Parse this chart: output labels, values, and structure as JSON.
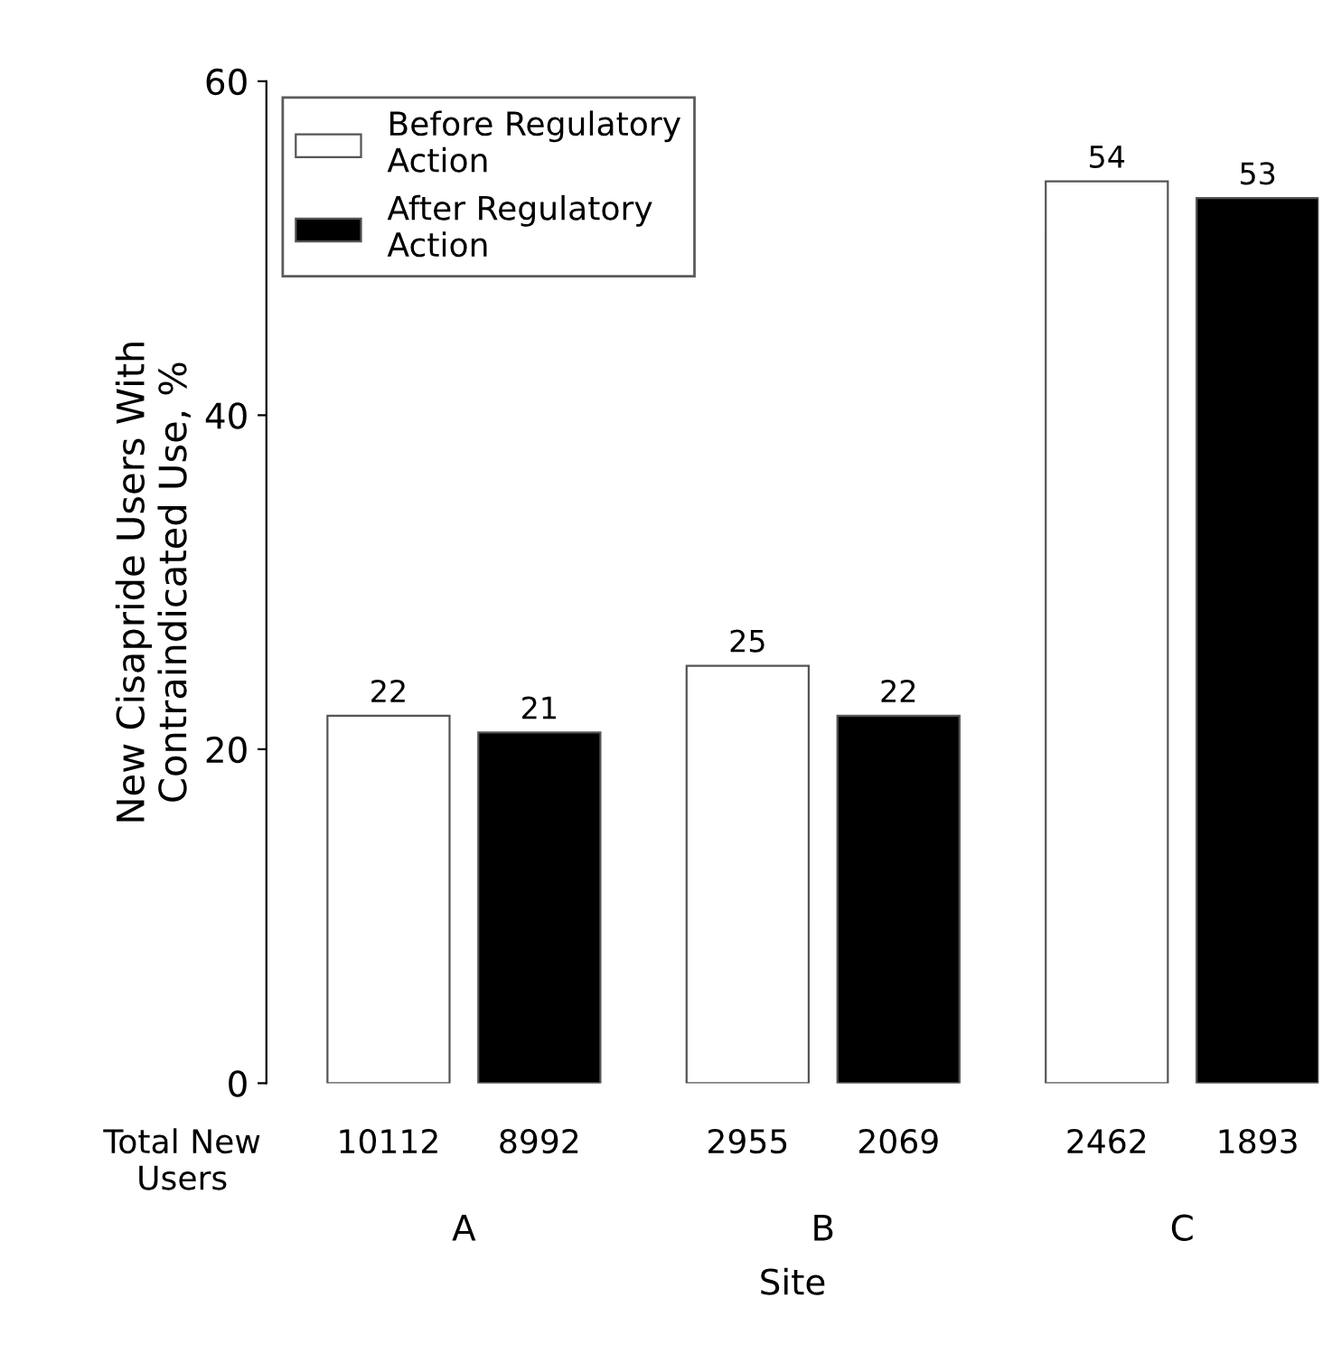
{
  "chart_data": {
    "type": "bar",
    "categories": [
      "A",
      "B",
      "C"
    ],
    "xlabel": "Site",
    "ylabel": "New Cisapride Users With\nContraindicated Use, %",
    "series": [
      {
        "name": "Before Regulatory\nAction",
        "color": "#ffffff",
        "values": [
          22,
          25,
          54
        ]
      },
      {
        "name": "After Regulatory\nAction",
        "color": "#000000",
        "values": [
          21,
          22,
          53
        ]
      }
    ],
    "ylim": [
      0,
      60
    ],
    "yticks": [
      0,
      20,
      40,
      60
    ],
    "data_labels": true,
    "legend": "top left",
    "grid": false,
    "annotations": [
      "Total New\nUsers",
      "10112",
      "8992",
      "2955",
      "2069",
      "2462",
      "1893"
    ]
  }
}
